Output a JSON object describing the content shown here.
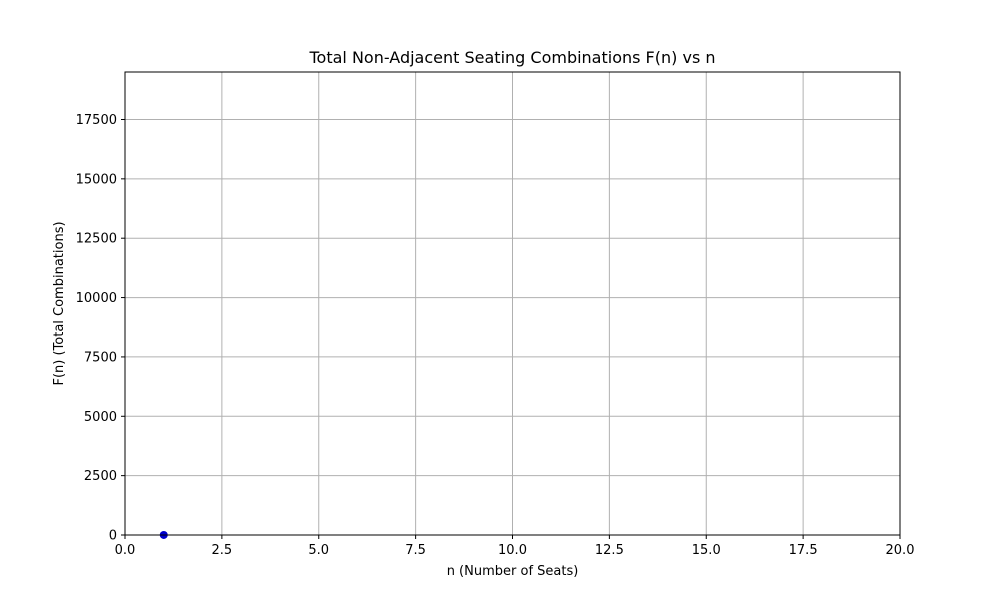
{
  "chart_data": {
    "type": "scatter",
    "title": "Total Non-Adjacent Seating Combinations F(n) vs n",
    "xlabel": "n (Number of Seats)",
    "ylabel": "F(n) (Total Combinations)",
    "xlim": [
      0,
      20
    ],
    "ylim": [
      0,
      19500
    ],
    "xticks": [
      0,
      2.5,
      5,
      7.5,
      10,
      12.5,
      15,
      17.5,
      20
    ],
    "xtick_labels": [
      "0.0",
      "2.5",
      "5.0",
      "7.5",
      "10.0",
      "12.5",
      "15.0",
      "17.5",
      "20.0"
    ],
    "yticks": [
      0,
      2500,
      5000,
      7500,
      10000,
      12500,
      15000,
      17500
    ],
    "ytick_labels": [
      "0",
      "2500",
      "5000",
      "7500",
      "10000",
      "12500",
      "15000",
      "17500"
    ],
    "grid": true,
    "series": [
      {
        "color": "#0000cc",
        "points": [
          {
            "x": 1,
            "y": 1
          }
        ]
      }
    ]
  }
}
